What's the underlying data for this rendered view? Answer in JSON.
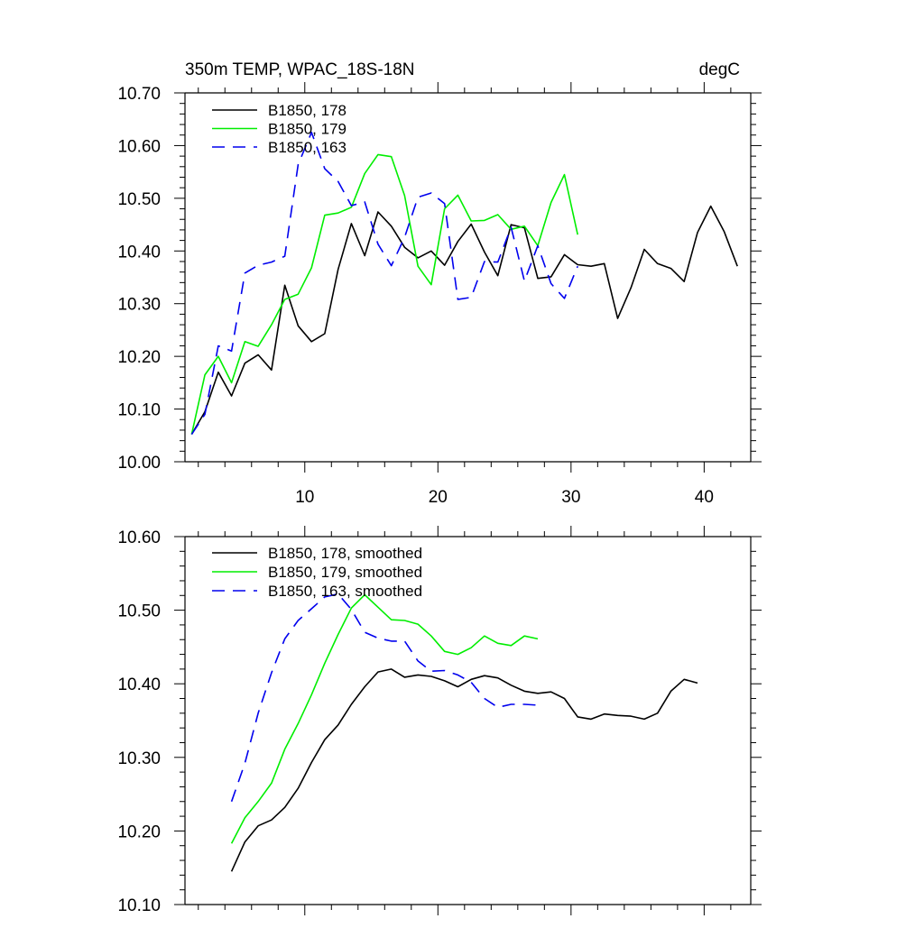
{
  "chart_data": [
    {
      "type": "line",
      "title": "350m TEMP, WPAC_18S-18N",
      "units": "degC",
      "xlabel": "",
      "ylabel": "",
      "xlim": [
        1,
        43.5
      ],
      "ylim": [
        10.0,
        10.7
      ],
      "xticks": [
        10,
        20,
        30,
        40
      ],
      "xtick_labels": [
        "10",
        "20",
        "30",
        "40"
      ],
      "yticks": [
        10.0,
        10.1,
        10.2,
        10.3,
        10.4,
        10.5,
        10.6,
        10.7
      ],
      "ytick_labels": [
        "10.00",
        "10.10",
        "10.20",
        "10.30",
        "10.40",
        "10.50",
        "10.60",
        "10.70"
      ],
      "legend_position": "top-left",
      "series": [
        {
          "name": "B1850, 178",
          "color": "#000000",
          "dash": "solid",
          "x_start": 1.5,
          "values": [
            10.052,
            10.095,
            10.17,
            10.125,
            10.187,
            10.203,
            10.174,
            10.335,
            10.258,
            10.228,
            10.243,
            10.365,
            10.452,
            10.391,
            10.474,
            10.447,
            10.407,
            10.387,
            10.4,
            10.373,
            10.418,
            10.451,
            10.398,
            10.353,
            10.45,
            10.444,
            10.348,
            10.351,
            10.393,
            10.374,
            10.371,
            10.376,
            10.272,
            10.33,
            10.403,
            10.376,
            10.367,
            10.342,
            10.435,
            10.485,
            10.437,
            10.371
          ]
        },
        {
          "name": "B1850, 179",
          "color": "#00ee00",
          "dash": "solid",
          "x_start": 1.5,
          "values": [
            10.052,
            10.165,
            10.2,
            10.15,
            10.228,
            10.219,
            10.26,
            10.308,
            10.318,
            10.368,
            10.468,
            10.472,
            10.483,
            10.547,
            10.583,
            10.579,
            10.505,
            10.371,
            10.336,
            10.48,
            10.506,
            10.457,
            10.458,
            10.469,
            10.441,
            10.447,
            10.41,
            10.492,
            10.545,
            10.431
          ]
        },
        {
          "name": "B1850, 163",
          "color": "#0000ee",
          "dash": "dashed",
          "x_start": 1.5,
          "values": [
            10.052,
            10.09,
            10.22,
            10.21,
            10.358,
            10.373,
            10.379,
            10.39,
            10.564,
            10.625,
            10.556,
            10.532,
            10.486,
            10.493,
            10.413,
            10.372,
            10.426,
            10.502,
            10.51,
            10.49,
            10.308,
            10.312,
            10.38,
            10.379,
            10.445,
            10.343,
            10.41,
            10.338,
            10.31,
            10.371
          ]
        }
      ]
    },
    {
      "type": "line",
      "title": "",
      "xlabel": "",
      "ylabel": "",
      "xlim": [
        1,
        43.5
      ],
      "ylim": [
        10.1,
        10.6
      ],
      "xticks": [
        10,
        20,
        30,
        40
      ],
      "yticks": [
        10.1,
        10.2,
        10.3,
        10.4,
        10.5,
        10.6
      ],
      "ytick_labels": [
        "10.10",
        "10.20",
        "10.30",
        "10.40",
        "10.50",
        "10.60"
      ],
      "legend_position": "top-left",
      "series": [
        {
          "name": "B1850, 178, smoothed",
          "color": "#000000",
          "dash": "solid",
          "x_start": 4.5,
          "values": [
            10.145,
            10.185,
            10.207,
            10.215,
            10.232,
            10.258,
            10.293,
            10.324,
            10.344,
            10.372,
            10.396,
            10.416,
            10.42,
            10.409,
            10.412,
            10.41,
            10.404,
            10.396,
            10.406,
            10.411,
            10.408,
            10.398,
            10.39,
            10.387,
            10.389,
            10.38,
            10.355,
            10.352,
            10.359,
            10.357,
            10.356,
            10.352,
            10.36,
            10.39,
            10.406,
            10.401
          ]
        },
        {
          "name": "B1850, 179, smoothed",
          "color": "#00ee00",
          "dash": "solid",
          "x_start": 4.5,
          "values": [
            10.183,
            10.218,
            10.24,
            10.265,
            10.311,
            10.346,
            10.385,
            10.428,
            10.467,
            10.503,
            10.521,
            10.504,
            10.487,
            10.486,
            10.481,
            10.465,
            10.444,
            10.44,
            10.449,
            10.465,
            10.455,
            10.452,
            10.465,
            10.461
          ]
        },
        {
          "name": "B1850, 163, smoothed",
          "color": "#0000ee",
          "dash": "dashed",
          "x_start": 4.5,
          "values": [
            10.24,
            10.292,
            10.36,
            10.415,
            10.461,
            10.486,
            10.502,
            10.518,
            10.522,
            10.501,
            10.47,
            10.462,
            10.458,
            10.458,
            10.431,
            10.417,
            10.418,
            10.412,
            10.402,
            10.38,
            10.368,
            10.372,
            10.372,
            10.371
          ]
        }
      ]
    }
  ]
}
